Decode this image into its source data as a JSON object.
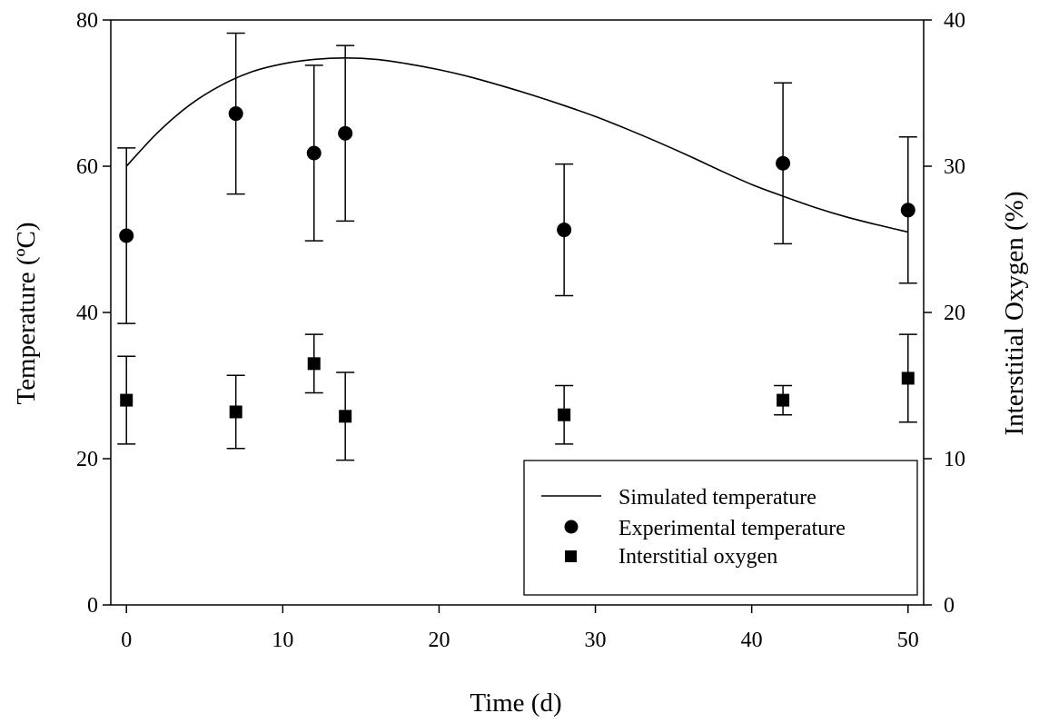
{
  "chart_data": {
    "type": "scatter",
    "title": "",
    "xlabel": "Time (d)",
    "ylabel": "Temperature (ºC)",
    "y2label": "Interstitial Oxygen (%)",
    "xlim": [
      -1,
      51
    ],
    "ylim": [
      0,
      80
    ],
    "y2lim": [
      0,
      40
    ],
    "x_ticks": [
      0,
      10,
      20,
      30,
      40,
      50
    ],
    "y_ticks": [
      0,
      20,
      40,
      60,
      80
    ],
    "y2_ticks": [
      0,
      10,
      20,
      30,
      40
    ],
    "grid": false,
    "legend_position": "bottom-right",
    "colors": {
      "axis": "#000000",
      "series": "#000000",
      "background": "#ffffff"
    },
    "series": [
      {
        "name": "Simulated temperature",
        "kind": "line",
        "axis": "left",
        "x": [
          0,
          2,
          4,
          6,
          8,
          10,
          12,
          14,
          16,
          18,
          20,
          22,
          24,
          26,
          28,
          30,
          32,
          34,
          36,
          38,
          40,
          42,
          44,
          46,
          48,
          50
        ],
        "y": [
          60.0,
          64.6,
          68.3,
          71.0,
          72.9,
          74.0,
          74.6,
          74.8,
          74.6,
          74.0,
          73.2,
          72.2,
          71.0,
          69.7,
          68.3,
          66.8,
          65.1,
          63.3,
          61.4,
          59.4,
          57.5,
          55.9,
          54.4,
          53.1,
          52.0,
          51.0
        ]
      },
      {
        "name": "Experimental temperature",
        "kind": "scatter",
        "marker": "circle",
        "axis": "left",
        "x": [
          0,
          7,
          12,
          14,
          28,
          42,
          50
        ],
        "y": [
          50.5,
          67.2,
          61.8,
          64.5,
          51.3,
          60.4,
          54.0
        ],
        "err": [
          12.0,
          11.0,
          12.0,
          12.0,
          9.0,
          11.0,
          10.0
        ]
      },
      {
        "name": "Interstitial oxygen",
        "kind": "scatter",
        "marker": "square",
        "axis": "left",
        "x": [
          0,
          7,
          12,
          14,
          28,
          42,
          50
        ],
        "y": [
          28.0,
          26.4,
          33.0,
          25.8,
          26.0,
          28.0,
          31.0
        ],
        "err": [
          6.0,
          5.0,
          4.0,
          6.0,
          4.0,
          2.0,
          6.0
        ]
      }
    ]
  }
}
